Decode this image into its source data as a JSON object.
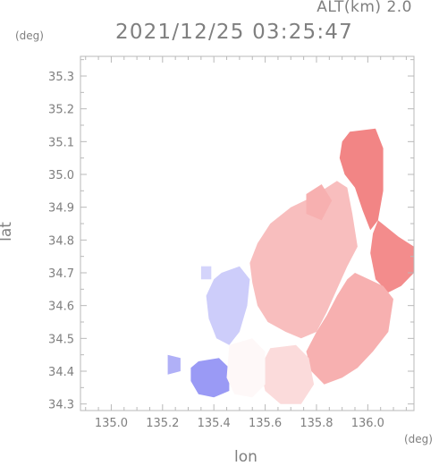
{
  "header": {
    "altitude": "ALT(km) 2.0",
    "timestamp": "2021/12/25 03:25:47"
  },
  "chart_data": {
    "type": "heatmap",
    "title": "2021/12/25 03:25:47",
    "subtitle": "ALT(km) 2.0",
    "xlabel": "lon",
    "ylabel": "lat",
    "x_unit": "(deg)",
    "y_unit": "(deg)",
    "xlim": [
      134.88,
      136.18
    ],
    "ylim": [
      34.28,
      35.36
    ],
    "x_ticks": [
      135.0,
      135.2,
      135.4,
      135.6,
      135.8,
      136.0
    ],
    "x_tick_labels": [
      "135.0",
      "135.2",
      "135.4",
      "135.6",
      "135.8",
      "136.0"
    ],
    "y_ticks": [
      34.3,
      34.4,
      34.5,
      34.6,
      34.7,
      34.8,
      34.9,
      35.0,
      35.1,
      35.2,
      35.3
    ],
    "y_tick_labels": [
      "34.3",
      "34.4",
      "34.5",
      "34.6",
      "34.7",
      "34.8",
      "34.9",
      "35.0",
      "35.1",
      "35.2",
      "35.3"
    ],
    "grid": false,
    "colors": {
      "toward": "#6f6ff0",
      "away": "#f06f6f",
      "neutral": "#ffffff",
      "frame": "#b8b8b8",
      "text": "#7f7f7f"
    },
    "regions": [
      {
        "name": "north-red-core",
        "value": 0.85,
        "polygon": [
          [
            135.93,
            35.13
          ],
          [
            136.03,
            35.14
          ],
          [
            136.06,
            35.08
          ],
          [
            136.06,
            34.95
          ],
          [
            136.04,
            34.86
          ],
          [
            136.01,
            34.83
          ],
          [
            135.98,
            34.89
          ],
          [
            135.95,
            34.96
          ],
          [
            135.91,
            35.0
          ],
          [
            135.89,
            35.05
          ],
          [
            135.9,
            35.1
          ]
        ]
      },
      {
        "name": "east-red-arm",
        "value": 0.8,
        "polygon": [
          [
            136.04,
            34.86
          ],
          [
            136.12,
            34.81
          ],
          [
            136.18,
            34.78
          ],
          [
            136.18,
            34.7
          ],
          [
            136.13,
            34.66
          ],
          [
            136.08,
            34.64
          ],
          [
            136.03,
            34.68
          ],
          [
            136.01,
            34.76
          ],
          [
            136.02,
            34.82
          ]
        ]
      },
      {
        "name": "central-light-red",
        "value": 0.45,
        "polygon": [
          [
            135.78,
            34.93
          ],
          [
            135.88,
            34.98
          ],
          [
            135.92,
            34.96
          ],
          [
            135.94,
            34.88
          ],
          [
            135.96,
            34.78
          ],
          [
            135.92,
            34.72
          ],
          [
            135.88,
            34.65
          ],
          [
            135.84,
            34.58
          ],
          [
            135.8,
            34.52
          ],
          [
            135.74,
            34.5
          ],
          [
            135.68,
            34.52
          ],
          [
            135.61,
            34.55
          ],
          [
            135.57,
            34.6
          ],
          [
            135.55,
            34.67
          ],
          [
            135.54,
            34.73
          ],
          [
            135.57,
            34.79
          ],
          [
            135.62,
            34.85
          ],
          [
            135.7,
            34.9
          ]
        ]
      },
      {
        "name": "northwest-light-red",
        "value": 0.55,
        "polygon": [
          [
            135.76,
            34.94
          ],
          [
            135.82,
            34.97
          ],
          [
            135.86,
            34.92
          ],
          [
            135.82,
            34.86
          ],
          [
            135.76,
            34.88
          ]
        ]
      },
      {
        "name": "southeast-red-band",
        "value": 0.55,
        "polygon": [
          [
            135.95,
            34.7
          ],
          [
            136.06,
            34.66
          ],
          [
            136.1,
            34.62
          ],
          [
            136.08,
            34.52
          ],
          [
            136.02,
            34.46
          ],
          [
            135.96,
            34.41
          ],
          [
            135.9,
            34.38
          ],
          [
            135.83,
            34.36
          ],
          [
            135.78,
            34.4
          ],
          [
            135.76,
            34.46
          ],
          [
            135.8,
            34.52
          ],
          [
            135.84,
            34.57
          ],
          [
            135.88,
            34.63
          ],
          [
            135.92,
            34.68
          ]
        ]
      },
      {
        "name": "south-pale-red",
        "value": 0.25,
        "polygon": [
          [
            135.62,
            34.47
          ],
          [
            135.72,
            34.48
          ],
          [
            135.77,
            34.44
          ],
          [
            135.79,
            34.36
          ],
          [
            135.74,
            34.3
          ],
          [
            135.66,
            34.3
          ],
          [
            135.6,
            34.34
          ],
          [
            135.58,
            34.41
          ]
        ]
      },
      {
        "name": "central-blue",
        "value": -0.35,
        "polygon": [
          [
            135.43,
            34.7
          ],
          [
            135.5,
            34.72
          ],
          [
            135.54,
            34.68
          ],
          [
            135.53,
            34.6
          ],
          [
            135.5,
            34.52
          ],
          [
            135.46,
            34.48
          ],
          [
            135.41,
            34.5
          ],
          [
            135.38,
            34.56
          ],
          [
            135.37,
            34.63
          ],
          [
            135.4,
            34.68
          ]
        ]
      },
      {
        "name": "southwest-blue",
        "value": -0.7,
        "polygon": [
          [
            135.34,
            34.43
          ],
          [
            135.42,
            34.44
          ],
          [
            135.46,
            34.41
          ],
          [
            135.46,
            34.34
          ],
          [
            135.4,
            34.32
          ],
          [
            135.34,
            34.33
          ],
          [
            135.31,
            34.37
          ],
          [
            135.31,
            34.41
          ]
        ]
      },
      {
        "name": "south-white-mixed",
        "value": 0.05,
        "polygon": [
          [
            135.46,
            34.48
          ],
          [
            135.55,
            34.5
          ],
          [
            135.6,
            34.46
          ],
          [
            135.6,
            34.36
          ],
          [
            135.55,
            34.32
          ],
          [
            135.48,
            34.33
          ],
          [
            135.45,
            34.38
          ]
        ]
      },
      {
        "name": "far-west-blue-fragment",
        "value": -0.55,
        "polygon": [
          [
            135.22,
            34.45
          ],
          [
            135.27,
            34.44
          ],
          [
            135.27,
            34.4
          ],
          [
            135.22,
            34.39
          ]
        ]
      },
      {
        "name": "northwest-blue-fragment",
        "value": -0.3,
        "polygon": [
          [
            135.35,
            34.72
          ],
          [
            135.39,
            34.72
          ],
          [
            135.39,
            34.68
          ],
          [
            135.35,
            34.68
          ]
        ]
      }
    ]
  }
}
